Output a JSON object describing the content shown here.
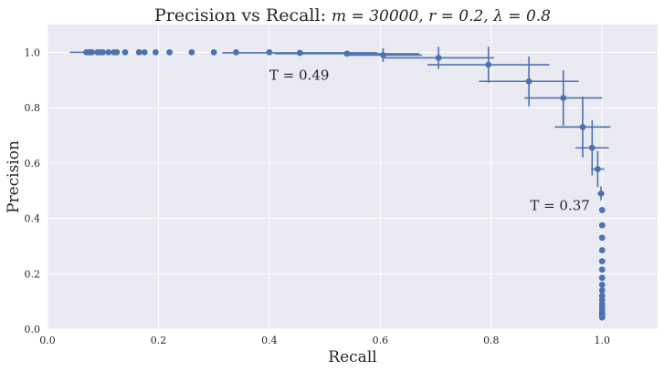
{
  "chart_data": {
    "type": "scatter",
    "title_prefix": "Precision vs Recall: ",
    "title_params": "m = 30000, r = 0.2, λ = 0.8",
    "xlabel": "Recall",
    "ylabel": "Precision",
    "xlim": [
      0.0,
      1.1
    ],
    "ylim": [
      0.0,
      1.1
    ],
    "xticks": [
      "0.0",
      "0.2",
      "0.4",
      "0.6",
      "0.8",
      "1.0"
    ],
    "yticks": [
      "0.0",
      "0.2",
      "0.4",
      "0.6",
      "0.8",
      "1.0"
    ],
    "grid": true,
    "marker_color": "#4c72b0",
    "background_color": "#eaeaf2",
    "annotations": [
      {
        "text": "T = 0.49",
        "x": 0.4,
        "y": 0.9
      },
      {
        "text": "T = 0.37",
        "x": 0.87,
        "y": 0.43
      }
    ],
    "series": [
      {
        "points": [
          {
            "x": 0.07,
            "y": 1.0,
            "xerr": 0.03,
            "yerr": 0.0
          },
          {
            "x": 0.075,
            "y": 1.0,
            "xerr": 0.0,
            "yerr": 0.0
          },
          {
            "x": 0.078,
            "y": 1.0,
            "xerr": 0.0,
            "yerr": 0.0
          },
          {
            "x": 0.08,
            "y": 1.0,
            "xerr": 0.0,
            "yerr": 0.0
          },
          {
            "x": 0.09,
            "y": 1.0,
            "xerr": 0.0,
            "yerr": 0.0
          },
          {
            "x": 0.095,
            "y": 1.0,
            "xerr": 0.0,
            "yerr": 0.0
          },
          {
            "x": 0.1,
            "y": 1.0,
            "xerr": 0.0,
            "yerr": 0.0
          },
          {
            "x": 0.11,
            "y": 1.0,
            "xerr": 0.0,
            "yerr": 0.0
          },
          {
            "x": 0.12,
            "y": 1.0,
            "xerr": 0.0,
            "yerr": 0.0
          },
          {
            "x": 0.125,
            "y": 1.0,
            "xerr": 0.0,
            "yerr": 0.0
          },
          {
            "x": 0.14,
            "y": 1.0,
            "xerr": 0.0,
            "yerr": 0.0
          },
          {
            "x": 0.165,
            "y": 1.0,
            "xerr": 0.0,
            "yerr": 0.0
          },
          {
            "x": 0.175,
            "y": 1.0,
            "xerr": 0.0,
            "yerr": 0.0
          },
          {
            "x": 0.195,
            "y": 1.0,
            "xerr": 0.0,
            "yerr": 0.0
          },
          {
            "x": 0.22,
            "y": 1.0,
            "xerr": 0.0,
            "yerr": 0.0
          },
          {
            "x": 0.26,
            "y": 1.0,
            "xerr": 0.0,
            "yerr": 0.0
          },
          {
            "x": 0.3,
            "y": 1.0,
            "xerr": 0.0,
            "yerr": 0.0
          },
          {
            "x": 0.34,
            "y": 1.0,
            "xerr": 0.0,
            "yerr": 0.0
          },
          {
            "x": 0.4,
            "y": 1.0,
            "xerr": 0.0,
            "yerr": 0.0
          },
          {
            "x": 0.455,
            "y": 0.998,
            "xerr": 0.14,
            "yerr": 0.0
          },
          {
            "x": 0.54,
            "y": 0.995,
            "xerr": 0.13,
            "yerr": 0.01
          },
          {
            "x": 0.605,
            "y": 0.99,
            "xerr": 0.07,
            "yerr": 0.025
          },
          {
            "x": 0.705,
            "y": 0.98,
            "xerr": 0.1,
            "yerr": 0.04
          },
          {
            "x": 0.795,
            "y": 0.955,
            "xerr": 0.11,
            "yerr": 0.065
          },
          {
            "x": 0.868,
            "y": 0.895,
            "xerr": 0.09,
            "yerr": 0.09
          },
          {
            "x": 0.93,
            "y": 0.835,
            "xerr": 0.07,
            "yerr": 0.1
          },
          {
            "x": 0.965,
            "y": 0.73,
            "xerr": 0.05,
            "yerr": 0.11
          },
          {
            "x": 0.982,
            "y": 0.655,
            "xerr": 0.03,
            "yerr": 0.1
          },
          {
            "x": 0.992,
            "y": 0.578,
            "xerr": 0.012,
            "yerr": 0.065
          },
          {
            "x": 0.998,
            "y": 0.49,
            "xerr": 0.006,
            "yerr": 0.025
          },
          {
            "x": 1.0,
            "y": 0.43,
            "xerr": 0.0,
            "yerr": 0.0
          },
          {
            "x": 1.0,
            "y": 0.375,
            "xerr": 0.0,
            "yerr": 0.0
          },
          {
            "x": 1.0,
            "y": 0.33,
            "xerr": 0.0,
            "yerr": 0.0
          },
          {
            "x": 1.0,
            "y": 0.285,
            "xerr": 0.0,
            "yerr": 0.0
          },
          {
            "x": 1.0,
            "y": 0.245,
            "xerr": 0.0,
            "yerr": 0.0
          },
          {
            "x": 1.0,
            "y": 0.215,
            "xerr": 0.0,
            "yerr": 0.0
          },
          {
            "x": 1.0,
            "y": 0.185,
            "xerr": 0.0,
            "yerr": 0.0
          },
          {
            "x": 1.0,
            "y": 0.16,
            "xerr": 0.0,
            "yerr": 0.0
          },
          {
            "x": 1.0,
            "y": 0.14,
            "xerr": 0.0,
            "yerr": 0.0
          },
          {
            "x": 1.0,
            "y": 0.12,
            "xerr": 0.0,
            "yerr": 0.0
          },
          {
            "x": 1.0,
            "y": 0.105,
            "xerr": 0.0,
            "yerr": 0.0
          },
          {
            "x": 1.0,
            "y": 0.09,
            "xerr": 0.0,
            "yerr": 0.0
          },
          {
            "x": 1.0,
            "y": 0.078,
            "xerr": 0.0,
            "yerr": 0.0
          },
          {
            "x": 1.0,
            "y": 0.068,
            "xerr": 0.0,
            "yerr": 0.0
          },
          {
            "x": 1.0,
            "y": 0.06,
            "xerr": 0.0,
            "yerr": 0.0
          },
          {
            "x": 1.0,
            "y": 0.053,
            "xerr": 0.0,
            "yerr": 0.0
          },
          {
            "x": 1.0,
            "y": 0.047,
            "xerr": 0.0,
            "yerr": 0.0
          },
          {
            "x": 1.0,
            "y": 0.042,
            "xerr": 0.0,
            "yerr": 0.0
          }
        ]
      }
    ]
  }
}
